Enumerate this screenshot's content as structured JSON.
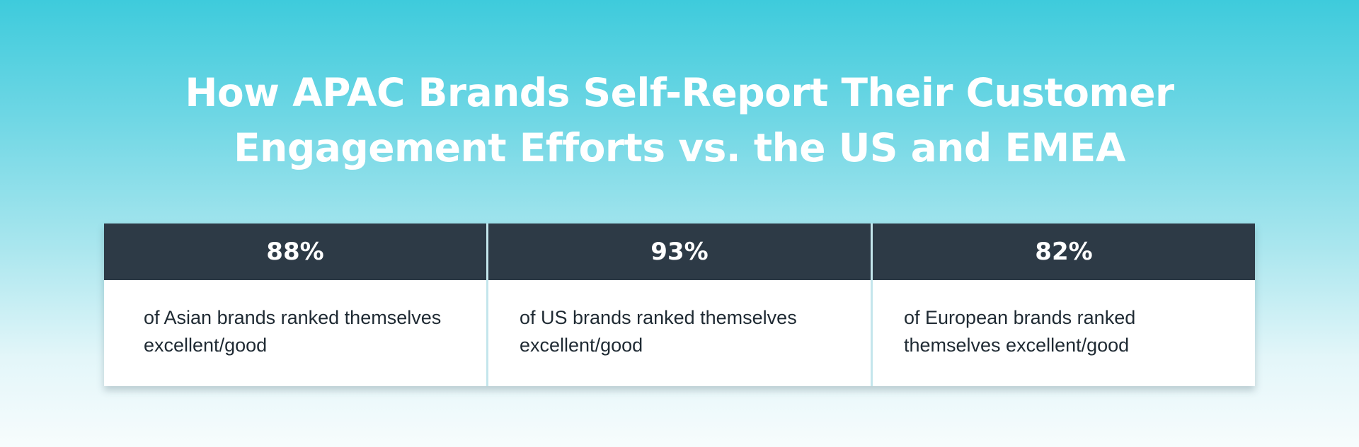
{
  "title": {
    "line1": "How APAC Brands Self-Report Their Customer",
    "line2": "Engagement Efforts vs. the US and EMEA"
  },
  "stats": [
    {
      "value": "88%",
      "label": "of Asian brands ranked themselves excellent/good"
    },
    {
      "value": "93%",
      "label": "of US brands ranked themselves excellent/good"
    },
    {
      "value": "82%",
      "label": "of European brands ranked themselves excellent/good"
    }
  ],
  "colors": {
    "background_top": "#3ecbdc",
    "background_bottom": "#f7fcfd",
    "header": "#2d3a46",
    "title_text": "#ffffff",
    "body_text": "#1f2a33"
  }
}
